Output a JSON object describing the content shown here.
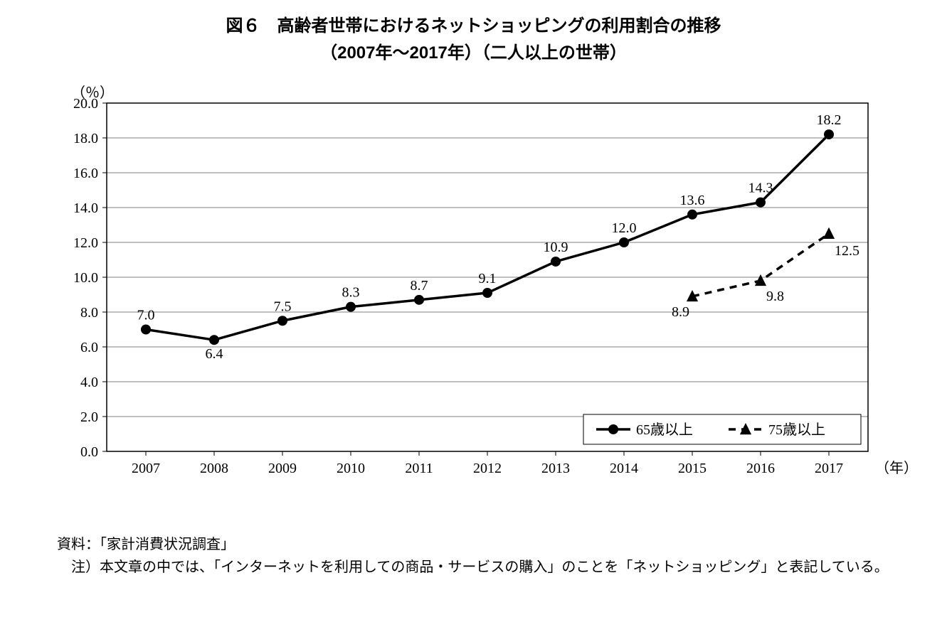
{
  "title_line1": "図６　高齢者世帯におけるネットショッピングの利用割合の推移",
  "title_line2": "（2007年～2017年）（二人以上の世帯）",
  "chart": {
    "type": "line",
    "y_unit": "（％）",
    "x_unit": "（年）",
    "categories": [
      "2007",
      "2008",
      "2009",
      "2010",
      "2011",
      "2012",
      "2013",
      "2014",
      "2015",
      "2016",
      "2017"
    ],
    "ylim": [
      0,
      20
    ],
    "ytick_step": 2,
    "ytick_decimals": 1,
    "background_color": "#ffffff",
    "grid_color": "#7f7f7f",
    "axis_color": "#000000",
    "tick_font_size": 20,
    "data_label_font_size": 20,
    "legend_font_size": 20,
    "series": [
      {
        "name": "65歳以上",
        "values": [
          7.0,
          6.4,
          7.5,
          8.3,
          8.7,
          9.1,
          10.9,
          12.0,
          13.6,
          14.3,
          18.2
        ],
        "labels": [
          "7.0",
          "6.4",
          "7.5",
          "8.3",
          "8.7",
          "9.1",
          "10.9",
          "12.0",
          "13.6",
          "14.3",
          "18.2"
        ],
        "label_pos": [
          "above",
          "below",
          "above",
          "above",
          "above",
          "above",
          "above",
          "above",
          "above",
          "above",
          "above"
        ],
        "color": "#000000",
        "marker": "circle",
        "marker_size": 7,
        "line_width": 3.5,
        "dash": "none"
      },
      {
        "name": "75歳以上",
        "values": [
          null,
          null,
          null,
          null,
          null,
          null,
          null,
          null,
          8.9,
          9.8,
          12.5
        ],
        "labels": [
          null,
          null,
          null,
          null,
          null,
          null,
          null,
          null,
          "8.9",
          "9.8",
          "12.5"
        ],
        "label_pos": [
          null,
          null,
          null,
          null,
          null,
          null,
          null,
          null,
          "below",
          "below",
          "below"
        ],
        "color": "#000000",
        "marker": "triangle",
        "marker_size": 9,
        "line_width": 3.5,
        "dash": "10,8"
      }
    ],
    "legend": {
      "position": "bottom-right",
      "border_color": "#000000",
      "border_width": 1
    }
  },
  "footnote_source": "資料：「家計消費状況調査」",
  "footnote_note": "注）本文章の中では、「インターネットを利用しての商品・サービスの購入」のことを「ネットショッピング」と表記している。"
}
